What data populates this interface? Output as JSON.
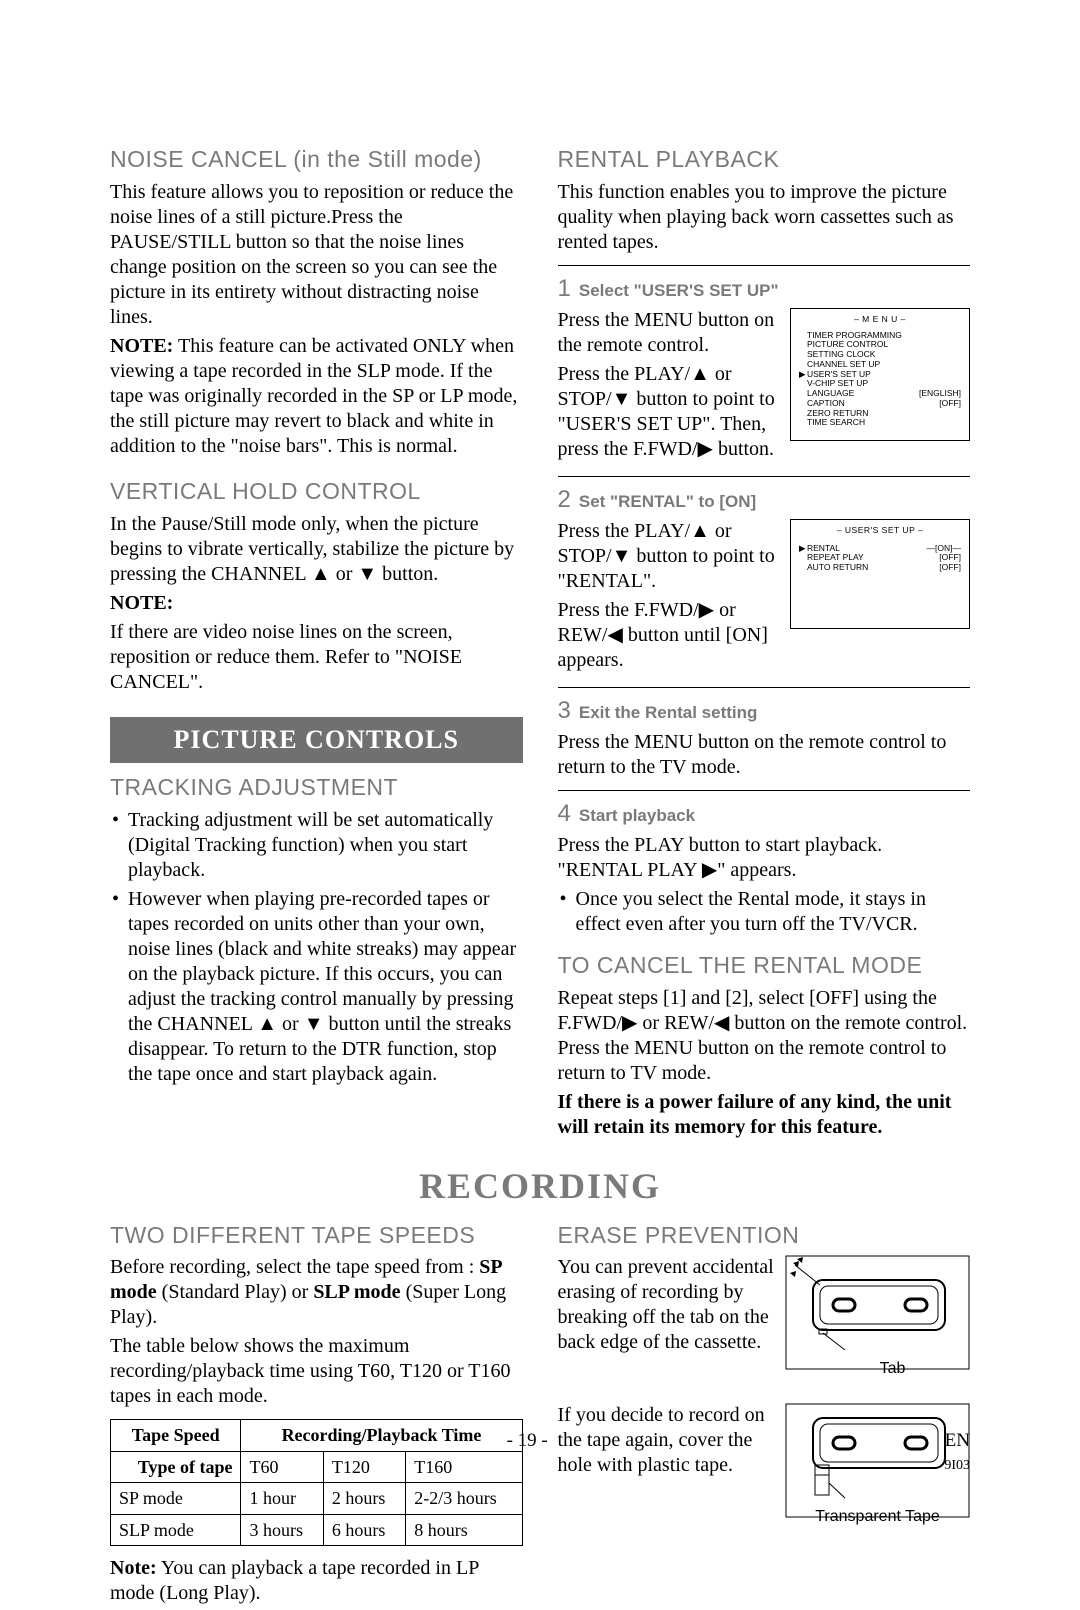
{
  "left": {
    "noise_cancel": {
      "title": "NOISE CANCEL (in the Still mode)",
      "p1": "This feature allows you to reposition or reduce the noise lines of a still picture.Press the PAUSE/STILL button so that the noise lines change position on the screen so you can see the picture in its entirety without distracting noise lines.",
      "note_label": "NOTE:",
      "note": " This feature can be activated ONLY when viewing a tape recorded in the SLP mode. If the tape was originally recorded in the SP or LP mode, the still picture may revert to black and white in addition to the \"noise bars\". This is normal."
    },
    "vhold": {
      "title": "VERTICAL HOLD CONTROL",
      "p1": "In the Pause/Still mode only, when the picture begins to vibrate vertically, stabilize the picture by pressing the CHANNEL ▲ or ▼ button.",
      "note_label": "NOTE:",
      "note": "If there are video noise lines on the screen, reposition or reduce them. Refer to \"NOISE CANCEL\"."
    },
    "picture_banner": "PICTURE CONTROLS",
    "tracking": {
      "title": "TRACKING ADJUSTMENT",
      "b1": "Tracking adjustment will be set automatically (Digital Tracking function) when you start playback.",
      "b2": "However when playing pre-recorded tapes or tapes recorded on units other than your own, noise lines (black and white streaks) may appear on the playback picture. If this occurs, you can adjust the tracking control manually by pressing the CHANNEL ▲ or ▼ button until the streaks disappear. To return to the DTR function, stop the tape once and start playback again."
    }
  },
  "right": {
    "rental": {
      "title": "RENTAL PLAYBACK",
      "intro": "This function enables you to improve the picture quality when playing back worn cassettes such as rented tapes.",
      "steps": {
        "s1": {
          "num": "1",
          "title": "Select \"USER'S SET UP\"",
          "p1": "Press the MENU button on the remote control.",
          "p2": "Press the PLAY/▲ or STOP/▼ button to point to \"USER'S SET UP\". Then, press the F.FWD/▶ button."
        },
        "s2": {
          "num": "2",
          "title": "Set \"RENTAL\" to [ON]",
          "p1": "Press the PLAY/▲ or STOP/▼ button to point to \"RENTAL\".",
          "p2": "Press the F.FWD/▶ or REW/◀ button until [ON] appears."
        },
        "s3": {
          "num": "3",
          "title": "Exit the Rental setting",
          "p1": "Press the MENU button on the remote control to return to the TV mode."
        },
        "s4": {
          "num": "4",
          "title": "Start playback",
          "p1": "Press the PLAY button to start playback. \"RENTAL PLAY ▶\" appears.",
          "b1": "Once you select the Rental mode, it stays in effect even after you turn off the TV/VCR."
        }
      }
    },
    "osd_menu": {
      "title": "– M E N U –",
      "items": [
        {
          "l": "TIMER PROGRAMMING",
          "r": ""
        },
        {
          "l": "PICTURE CONTROL",
          "r": ""
        },
        {
          "l": "SETTING CLOCK",
          "r": ""
        },
        {
          "l": "CHANNEL SET UP",
          "r": ""
        },
        {
          "l": "USER'S SET UP",
          "r": "",
          "marker": "▶"
        },
        {
          "l": "V-CHIP SET UP",
          "r": ""
        },
        {
          "l": "LANGUAGE",
          "r": "[ENGLISH]"
        },
        {
          "l": "CAPTION",
          "r": "[OFF]"
        },
        {
          "l": "ZERO RETURN",
          "r": ""
        },
        {
          "l": "TIME SEARCH",
          "r": ""
        }
      ]
    },
    "osd_user": {
      "title": "– USER'S SET UP –",
      "items": [
        {
          "l": "RENTAL",
          "r": "—[ON]—",
          "marker": "▶"
        },
        {
          "l": "REPEAT PLAY",
          "r": "[OFF]"
        },
        {
          "l": "AUTO RETURN",
          "r": "[OFF]"
        }
      ]
    },
    "cancel": {
      "title": "TO CANCEL THE RENTAL MODE",
      "p1": "Repeat steps [1] and [2], select [OFF] using the F.FWD/▶ or REW/◀ button on the remote control. Press the MENU button on the remote control to return to TV mode.",
      "bold": "If there is a power failure of any kind, the unit will retain its memory for this feature."
    }
  },
  "recording": {
    "heading": "RECORDING",
    "speeds": {
      "title": "TWO DIFFERENT TAPE SPEEDS",
      "p1a": "Before recording, select the tape speed from : ",
      "p1b": "SP mode",
      "p1c": " (Standard Play) or ",
      "p1d": "SLP mode",
      "p1e": " (Super Long Play).",
      "p2": "The table below shows the maximum recording/playback time using T60, T120 or T160 tapes in each mode.",
      "table": {
        "h1": "Tape Speed",
        "h2": "Recording/Playback Time",
        "sub1": "Type of tape",
        "c1": "T60",
        "c2": "T120",
        "c3": "T160",
        "r1l": "SP mode",
        "r1a": "1 hour",
        "r1b": "2 hours",
        "r1c": "2-2/3 hours",
        "r2l": "SLP mode",
        "r2a": "3 hours",
        "r2b": "6 hours",
        "r2c": "8 hours"
      },
      "note_label": "Note:",
      "note": " You can playback a tape recorded in LP mode (Long Play)."
    },
    "erase": {
      "title": "ERASE PREVENTION",
      "p1": "You can prevent accidental erasing of recording by breaking off the tab on the back edge of the cassette.",
      "fig1_label": "Tab",
      "p2": "If you decide to record on the tape again, cover the hole with plastic tape.",
      "fig2_label": "Transparent Tape"
    }
  },
  "footer": {
    "page": "- 19 -",
    "lang": "EN",
    "code": "9I03"
  }
}
